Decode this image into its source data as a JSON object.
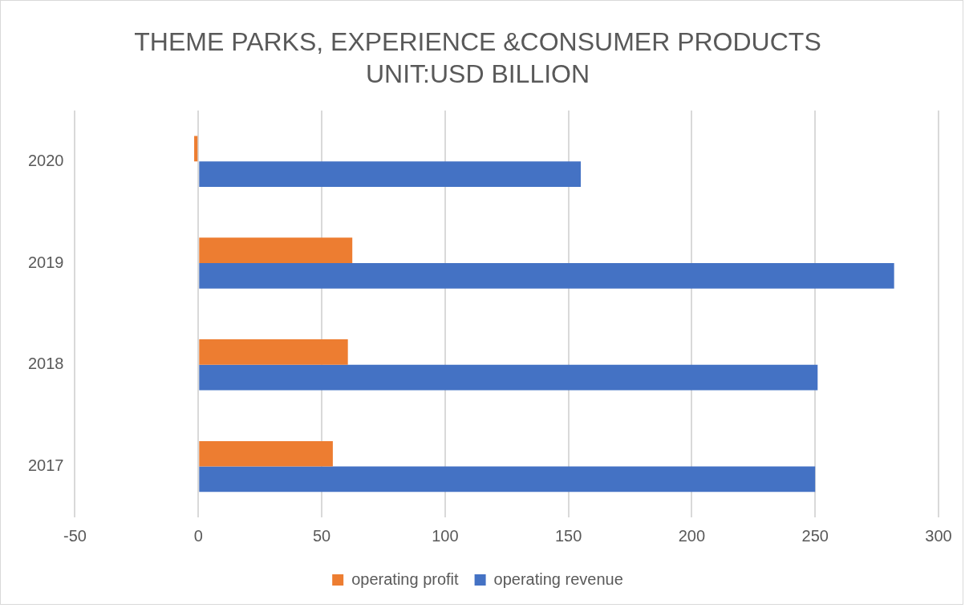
{
  "chart_data": {
    "type": "bar",
    "orientation": "horizontal",
    "title": "THEME PARKS, EXPERIENCE &CONSUMER PRODUCTS",
    "subtitle": "UNIT:USD BILLION",
    "categories": [
      "2020",
      "2019",
      "2018",
      "2017"
    ],
    "series": [
      {
        "name": "operating profit",
        "color": "#ed7d31",
        "values": [
          -1.7,
          62.4,
          60.6,
          54.5
        ]
      },
      {
        "name": "operating revenue",
        "color": "#4472c4",
        "values": [
          155,
          282,
          251,
          250
        ]
      }
    ],
    "xlim": [
      -50,
      300
    ],
    "xticks": [
      -50,
      0,
      50,
      100,
      150,
      200,
      250,
      300
    ],
    "grid": "x",
    "legend": "bottom"
  }
}
